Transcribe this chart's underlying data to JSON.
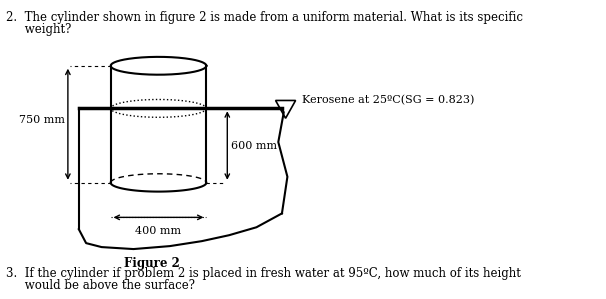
{
  "q2_text_line1": "2.  The cylinder shown in figure 2 is made from a uniform material. What is its specific",
  "q2_text_line2": "     weight?",
  "q3_text_line1": "3.  If the cylinder if problem 2 is placed in fresh water at 95ºC, how much of its height",
  "q3_text_line2": "     would be above the surface?",
  "figure_label": "Figure 2",
  "kerosene_label": "Kerosene at 25ºC(SG = 0.823)",
  "dim_750": "750 mm",
  "dim_600": "600 mm",
  "dim_400": "400 mm",
  "bg_color": "#ffffff",
  "line_color": "#000000",
  "fig_width": 6.06,
  "fig_height": 2.99,
  "dpi": 100
}
